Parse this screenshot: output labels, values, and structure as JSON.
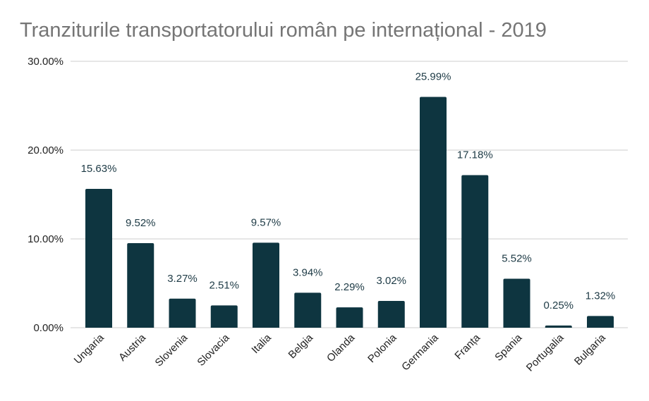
{
  "chart_data": {
    "type": "bar",
    "title": "Tranziturile transportatorului român pe internațional - 2019",
    "xlabel": "",
    "ylabel": "",
    "ylim": [
      0,
      30
    ],
    "yticks": [
      "0.00%",
      "10.00%",
      "20.00%",
      "30.00%"
    ],
    "grid": true,
    "bar_color": "#0e3540",
    "categories": [
      "Ungaria",
      "Austria",
      "Slovenia",
      "Slovacia",
      "Italia",
      "Belgia",
      "Olanda",
      "Polonia",
      "Germania",
      "Franța",
      "Spania",
      "Portugalia",
      "Bulgaria"
    ],
    "values": [
      15.63,
      9.52,
      3.27,
      2.51,
      9.57,
      3.94,
      2.29,
      3.02,
      25.99,
      17.18,
      5.52,
      0.25,
      1.32
    ],
    "data_labels": [
      "15.63%",
      "9.52%",
      "3.27%",
      "2.51%",
      "9.57%",
      "3.94%",
      "2.29%",
      "3.02%",
      "25.99%",
      "17.18%",
      "5.52%",
      "0.25%",
      "1.32%"
    ]
  }
}
